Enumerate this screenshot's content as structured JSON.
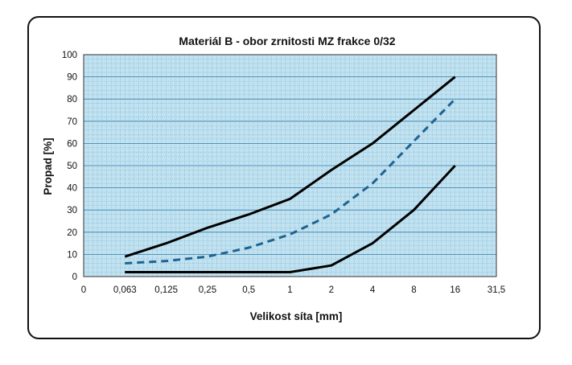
{
  "chart_data": {
    "type": "line",
    "title": "Materiál B - obor zrnitosti MZ frakce 0/32",
    "xlabel": "Velikost síta [mm]",
    "ylabel": "Propad  [%]",
    "x_categories": [
      "0",
      "0,063",
      "0,125",
      "0,25",
      "0,5",
      "1",
      "2",
      "4",
      "8",
      "16",
      "31,5"
    ],
    "ylim": [
      0,
      100
    ],
    "yticks": [
      0,
      10,
      20,
      30,
      40,
      50,
      60,
      70,
      80,
      90,
      100
    ],
    "grid": true,
    "series": [
      {
        "style": "solid",
        "color": "#000000",
        "x": [
          "0,063",
          "0,125",
          "0,25",
          "0,5",
          "1",
          "2",
          "4",
          "8",
          "16"
        ],
        "values": [
          9,
          15,
          22,
          28,
          35,
          48,
          60,
          75,
          90
        ]
      },
      {
        "style": "dashed",
        "color": "#1f6391",
        "x": [
          "0,063",
          "0,125",
          "0,25",
          "0,5",
          "1",
          "2",
          "4",
          "8",
          "16"
        ],
        "values": [
          6,
          7,
          9,
          13,
          19,
          28,
          42,
          61,
          80
        ]
      },
      {
        "style": "solid",
        "color": "#000000",
        "x": [
          "0,063",
          "0,125",
          "0,25",
          "0,5",
          "1",
          "2",
          "4",
          "8",
          "16"
        ],
        "values": [
          2,
          2,
          2,
          2,
          2,
          5,
          15,
          30,
          50
        ]
      }
    ],
    "colors": {
      "plot_background": "#c2e2f0",
      "grid": "#4f9ec6"
    }
  }
}
